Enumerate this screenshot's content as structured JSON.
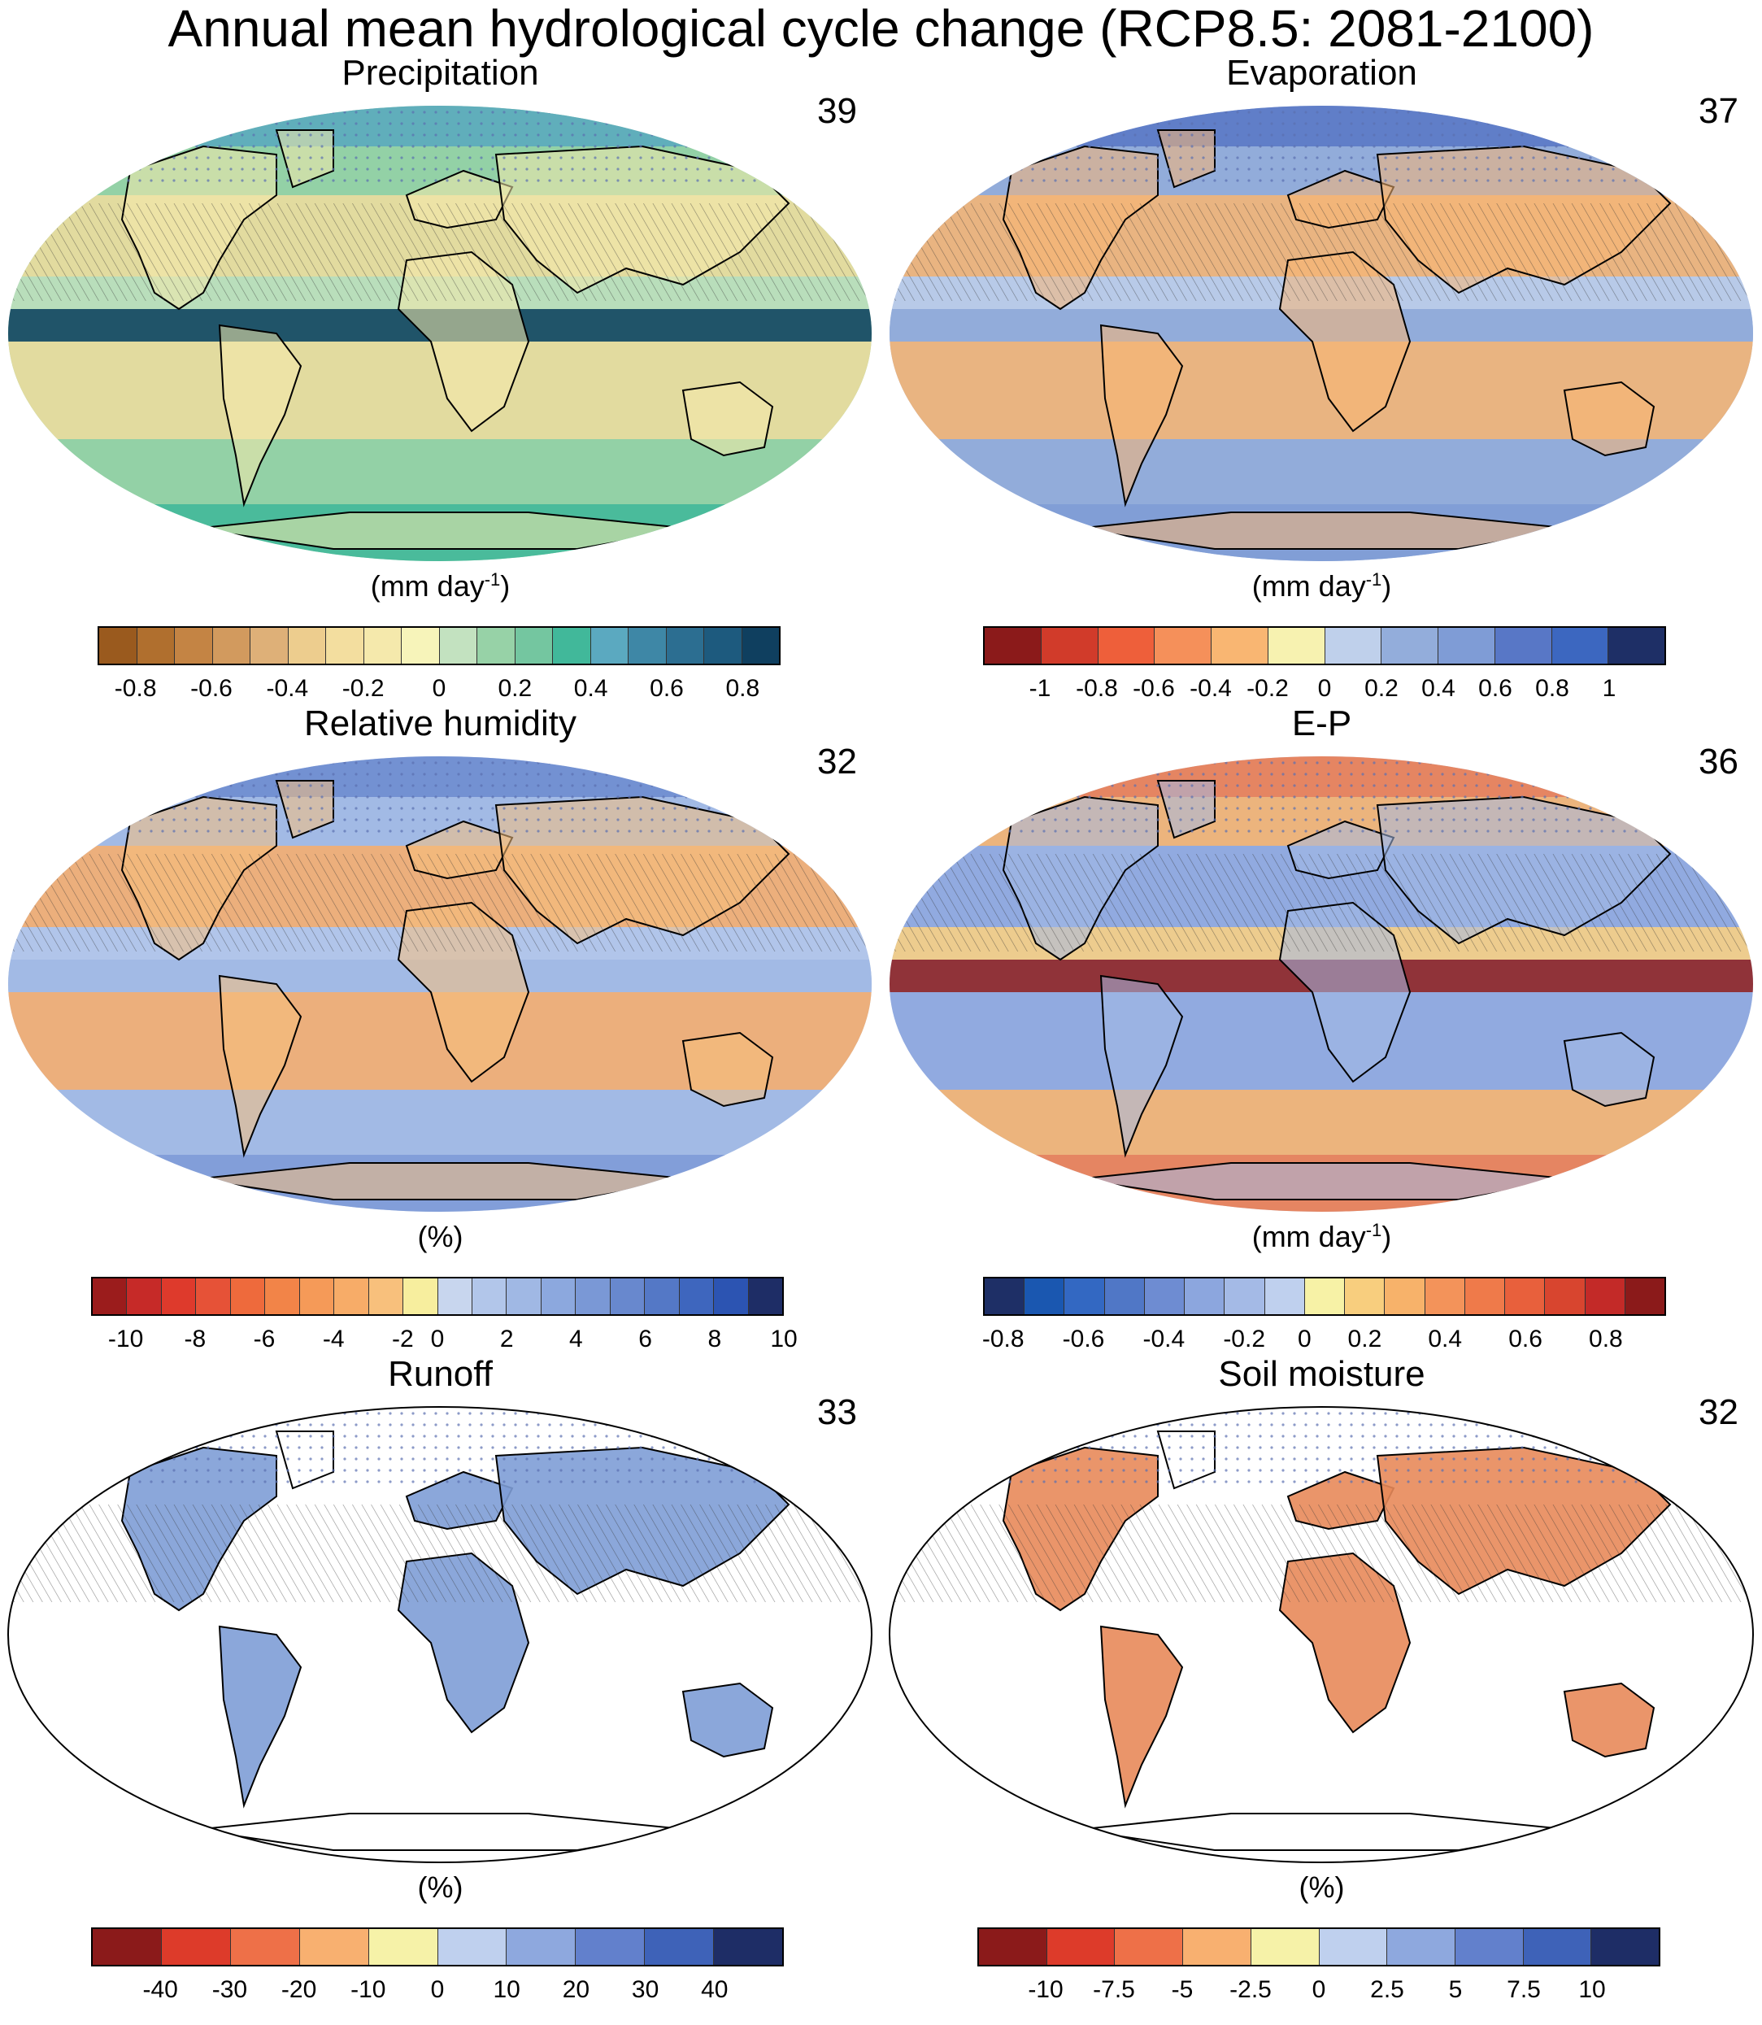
{
  "title": "Annual mean hydrological cycle change (RCP8.5: 2081-2100)",
  "panels": [
    {
      "id": "precipitation",
      "title": "Precipitation",
      "count": "39",
      "unit_main": "(mm day",
      "unit_sup": "-1",
      "unit_close": ")",
      "ocean_fill": true,
      "base_color": "#80C7A0",
      "colorbar": [
        "#9A5A1E",
        "#B06F2E",
        "#C48444",
        "#D29A5E",
        "#DEB078",
        "#EDCD8E",
        "#F3DE9F",
        "#F5E9AC",
        "#F7F4BA",
        "#C3E2C0",
        "#97D2A7",
        "#74C6A0",
        "#41B89A",
        "#5BA9C0",
        "#3E87A6",
        "#2C6E91",
        "#1D5A7E",
        "#0F3F5F"
      ],
      "ticks": [
        "-0.8",
        "-0.6",
        "-0.4",
        "-0.2",
        "0",
        "0.2",
        "0.4",
        "0.6",
        "0.8"
      ],
      "tick_slots": [
        1,
        3,
        5,
        7,
        9,
        11,
        13,
        15,
        17
      ]
    },
    {
      "id": "evaporation",
      "title": "Evaporation",
      "count": "37",
      "unit_main": "(mm day",
      "unit_sup": "-1",
      "unit_close": ")",
      "ocean_fill": true,
      "base_color": "#8EA8D8",
      "colorbar": [
        "#8B1A1A",
        "#D13B2A",
        "#EE5F3A",
        "#F5905A",
        "#F9B672",
        "#F7F2B0",
        "#BFD0EB",
        "#93ADDB",
        "#7F9CD6",
        "#5877C6",
        "#3C67C0",
        "#1E2F66"
      ],
      "ticks": [
        "-1",
        "-0.8",
        "-0.6",
        "-0.4",
        "-0.2",
        "0",
        "0.2",
        "0.4",
        "0.6",
        "0.8",
        "1"
      ],
      "tick_slots": [
        1,
        2,
        3,
        4,
        5,
        6,
        7,
        8,
        9,
        10,
        11
      ]
    },
    {
      "id": "relative_humidity",
      "title": "Relative humidity",
      "count": "32",
      "unit_main": "(%)",
      "unit_sup": "",
      "unit_close": "",
      "ocean_fill": true,
      "base_color": "#AFC4E6",
      "colorbar": [
        "#9B1C1C",
        "#C62A28",
        "#DE3A2C",
        "#E65237",
        "#EE6A3C",
        "#F28448",
        "#F59A58",
        "#F7AC68",
        "#F8C07C",
        "#F7EE9E",
        "#C8D6EE",
        "#B2C6EA",
        "#A0B8E4",
        "#8CA8DE",
        "#7A98D6",
        "#6888CE",
        "#5478C6",
        "#3E66BE",
        "#2C54B2",
        "#1E2D66"
      ],
      "ticks": [
        "-10",
        "-8",
        "-6",
        "-4",
        "-2",
        "0",
        "2",
        "4",
        "6",
        "8",
        "10"
      ],
      "tick_slots": [
        1,
        3,
        5,
        7,
        9,
        10,
        12,
        14,
        16,
        18,
        20
      ]
    },
    {
      "id": "e_minus_p",
      "title": "E-P",
      "count": "36",
      "unit_main": "(mm day",
      "unit_sup": "-1",
      "unit_close": ")",
      "ocean_fill": true,
      "base_color": "#AFC4E6",
      "colorbar": [
        "#1E2F66",
        "#1A57B0",
        "#3368C2",
        "#5077C6",
        "#6E8CD2",
        "#8CA6DE",
        "#A4BAE6",
        "#BFD0EE",
        "#F7F2A6",
        "#F8CE7E",
        "#F7B26A",
        "#F3935A",
        "#EF7A4A",
        "#E8603C",
        "#D8452F",
        "#C32A28",
        "#8B1A1A"
      ],
      "ticks": [
        "-0.8",
        "-0.6",
        "-0.4",
        "-0.2",
        "0",
        "0.2",
        "0.4",
        "0.6",
        "0.8"
      ],
      "tick_slots": [
        0.5,
        2.5,
        4.5,
        6.5,
        8,
        9.5,
        11.5,
        13.5,
        15.5
      ]
    },
    {
      "id": "runoff",
      "title": "Runoff",
      "count": "33",
      "unit_main": "(%)",
      "unit_sup": "",
      "unit_close": "",
      "ocean_fill": false,
      "base_color": "#7E9DD6",
      "colorbar": [
        "#8B1A1A",
        "#DD3B2A",
        "#EE7048",
        "#F8B070",
        "#F6F2A8",
        "#BFD0EE",
        "#8EA8DE",
        "#6280CC",
        "#3E62B8",
        "#1E2D66"
      ],
      "ticks": [
        "-40",
        "-30",
        "-20",
        "-10",
        "0",
        "10",
        "20",
        "30",
        "40"
      ],
      "tick_slots": [
        1,
        2,
        3,
        4,
        5,
        6,
        7,
        8,
        9
      ]
    },
    {
      "id": "soil_moisture",
      "title": "Soil moisture",
      "count": "32",
      "unit_main": "(%)",
      "unit_sup": "",
      "unit_close": "",
      "ocean_fill": false,
      "base_color": "#E88A5A",
      "colorbar": [
        "#8B1A1A",
        "#DD3B2A",
        "#EE7048",
        "#F8B070",
        "#F6F2A8",
        "#BFD0EE",
        "#8EA8DE",
        "#6280CC",
        "#3E62B8",
        "#1E2D66"
      ],
      "ticks": [
        "-10",
        "-7.5",
        "-5",
        "-2.5",
        "0",
        "2.5",
        "5",
        "7.5",
        "10"
      ],
      "tick_slots": [
        1,
        2,
        3,
        4,
        5,
        6,
        7,
        8,
        9
      ]
    }
  ]
}
